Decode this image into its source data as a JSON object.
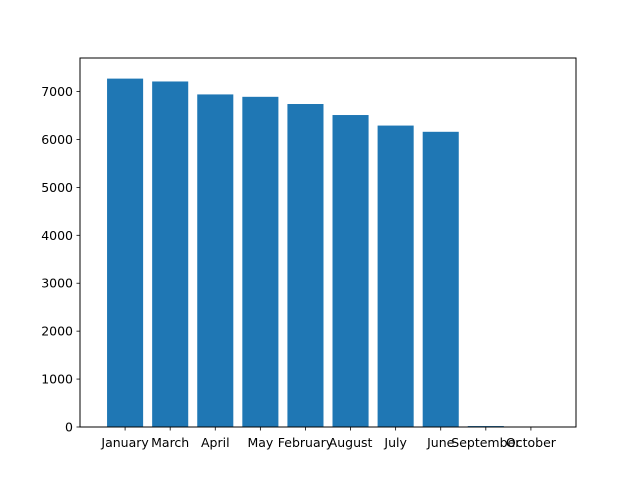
{
  "chart_data": {
    "type": "bar",
    "title": "",
    "xlabel": "",
    "ylabel": "",
    "categories": [
      "January",
      "March",
      "April",
      "May",
      "February",
      "August",
      "July",
      "June",
      "September",
      "October"
    ],
    "values": [
      7270,
      7210,
      6940,
      6890,
      6740,
      6510,
      6290,
      6160,
      20,
      5
    ],
    "ylim": [
      0,
      7700
    ],
    "yticks": [
      0,
      1000,
      2000,
      3000,
      4000,
      5000,
      6000,
      7000
    ],
    "ytick_labels": [
      "0",
      "1000",
      "2000",
      "3000",
      "4000",
      "5000",
      "6000",
      "7000"
    ],
    "bar_color": "#1f77b4",
    "grid": false,
    "legend": "none"
  }
}
